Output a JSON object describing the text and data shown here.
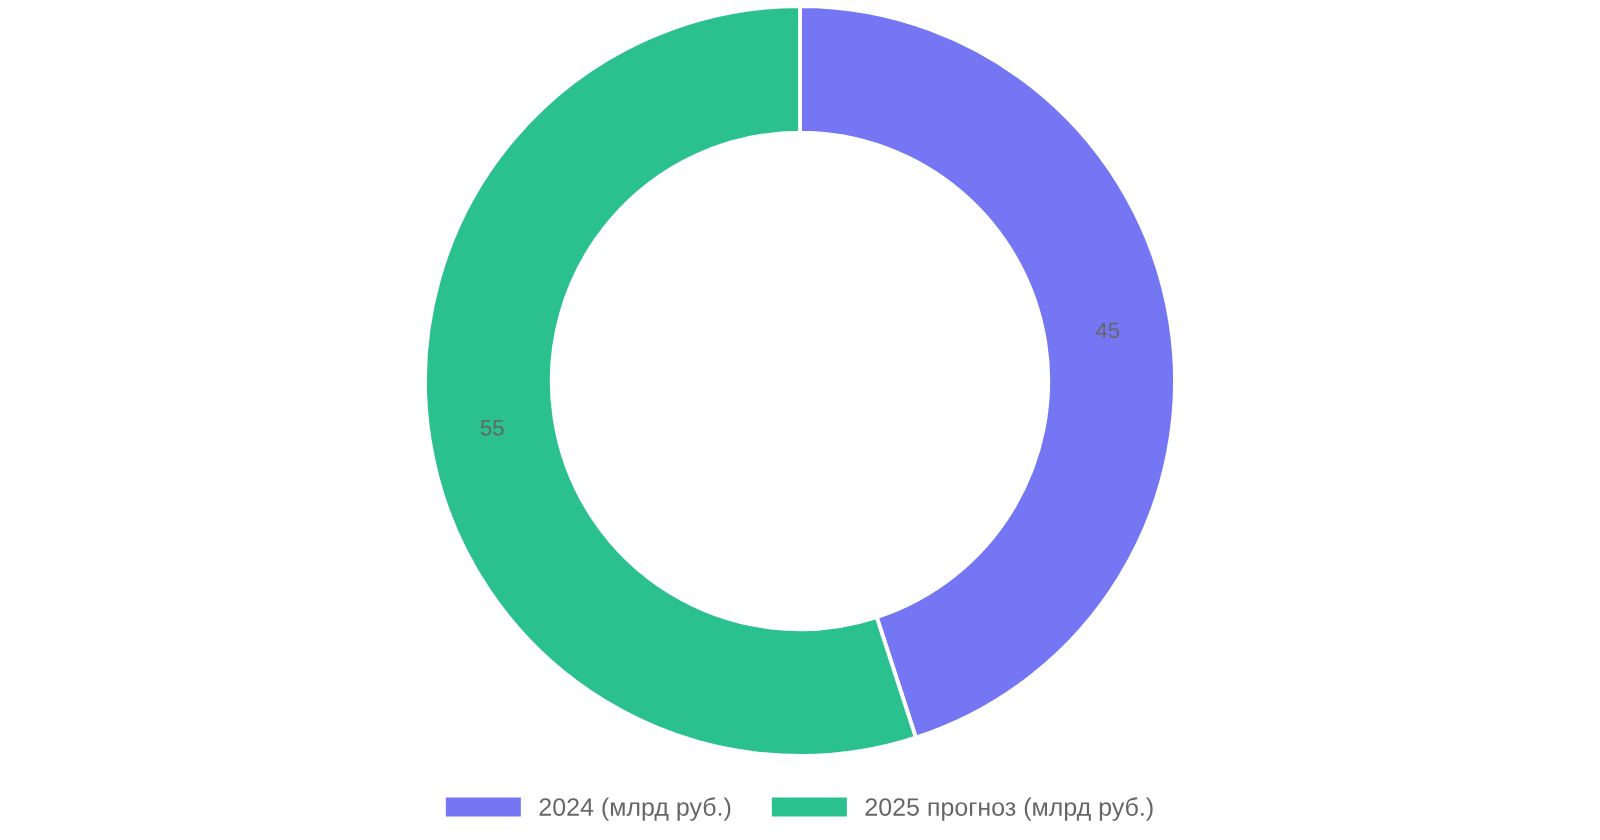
{
  "chart_data": {
    "type": "donut",
    "categories": [
      "2024 (млрд руб.)",
      "2025 прогноз (млрд руб.)"
    ],
    "values": [
      45,
      55
    ],
    "colors": [
      "#7476f3",
      "#2ac18e"
    ],
    "data_labels": true,
    "legend": "bottom"
  }
}
